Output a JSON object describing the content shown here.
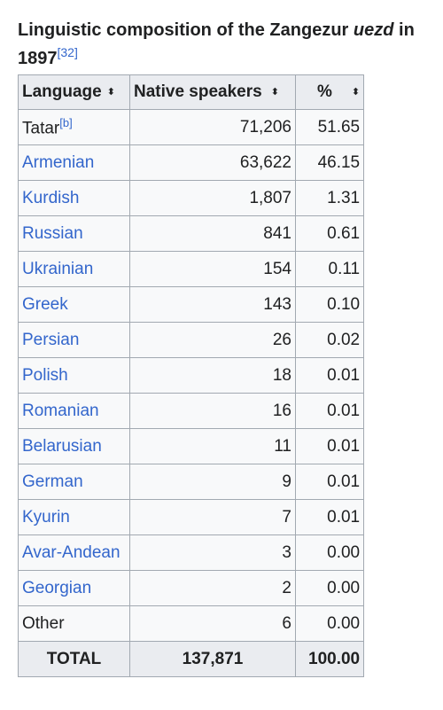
{
  "caption": {
    "text_before": "Linguistic composition of the Zangezur ",
    "italic": "uezd",
    "text_after": " in 1897",
    "ref": "[32]"
  },
  "headers": {
    "language": "Language",
    "speakers": "Native speakers",
    "percent": "%",
    "sort_icon": "sort-icon"
  },
  "rows": [
    {
      "language": "Tatar",
      "note": "[b]",
      "linked": false,
      "speakers": "71,206",
      "percent": "51.65"
    },
    {
      "language": "Armenian",
      "linked": true,
      "speakers": "63,622",
      "percent": "46.15"
    },
    {
      "language": "Kurdish",
      "linked": true,
      "speakers": "1,807",
      "percent": "1.31"
    },
    {
      "language": "Russian",
      "linked": true,
      "speakers": "841",
      "percent": "0.61"
    },
    {
      "language": "Ukrainian",
      "linked": true,
      "speakers": "154",
      "percent": "0.11"
    },
    {
      "language": "Greek",
      "linked": true,
      "speakers": "143",
      "percent": "0.10"
    },
    {
      "language": "Persian",
      "linked": true,
      "speakers": "26",
      "percent": "0.02"
    },
    {
      "language": "Polish",
      "linked": true,
      "speakers": "18",
      "percent": "0.01"
    },
    {
      "language": "Romanian",
      "linked": true,
      "speakers": "16",
      "percent": "0.01"
    },
    {
      "language": "Belarusian",
      "linked": true,
      "speakers": "11",
      "percent": "0.01"
    },
    {
      "language": "German",
      "linked": true,
      "speakers": "9",
      "percent": "0.01"
    },
    {
      "language": "Kyurin",
      "linked": true,
      "speakers": "7",
      "percent": "0.01"
    },
    {
      "language": "Avar-Andean",
      "linked": true,
      "speakers": "3",
      "percent": "0.00"
    },
    {
      "language": "Georgian",
      "linked": true,
      "speakers": "2",
      "percent": "0.00"
    },
    {
      "language": "Other",
      "linked": false,
      "speakers": "6",
      "percent": "0.00"
    }
  ],
  "total": {
    "label": "TOTAL",
    "speakers": "137,871",
    "percent": "100.00"
  },
  "colors": {
    "link": "#3366cc",
    "header_bg": "#eaecf0",
    "cell_bg": "#f8f9fa",
    "border": "#a2a9b1"
  }
}
